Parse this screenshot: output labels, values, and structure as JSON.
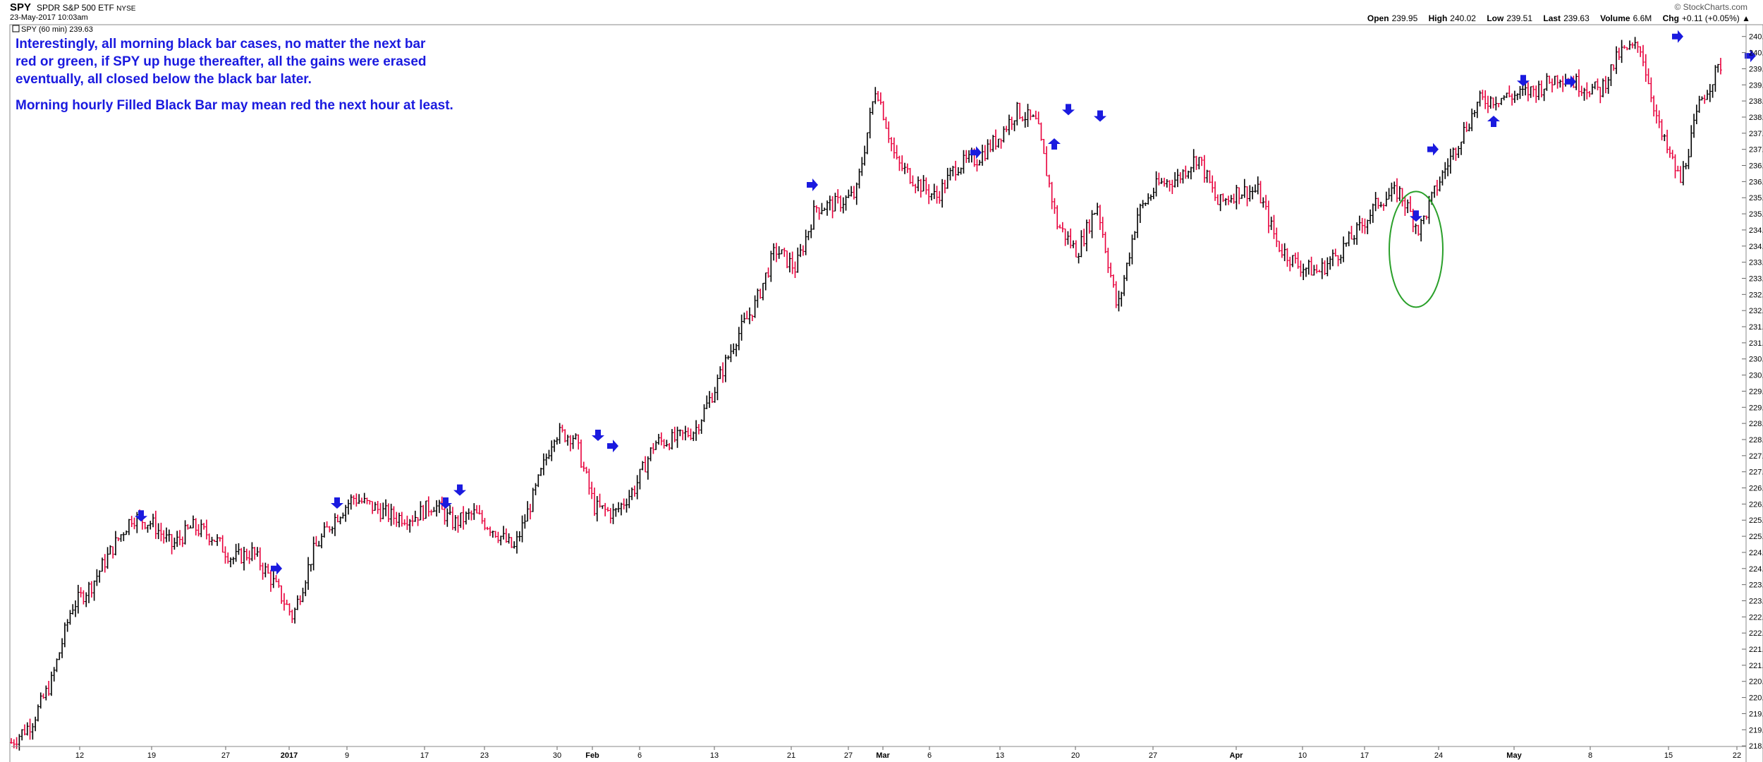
{
  "header": {
    "symbol": "SPY",
    "name": "SPDR S&P 500 ETF",
    "exchange": "NYSE",
    "date": "23-May-2017 10:03am",
    "brand": "© StockCharts.com",
    "open_label": "Open",
    "open": "239.95",
    "high_label": "High",
    "high": "240.02",
    "low_label": "Low",
    "low": "239.51",
    "last_label": "Last",
    "last": "239.63",
    "volume_label": "Volume",
    "volume": "6.6M",
    "chg_label": "Chg",
    "chg": "+0.11 (+0.05%)",
    "chg_arrow": "▲"
  },
  "legend": "SPY (60 min) 239.63",
  "annotations": {
    "note1": "Interestingly, all morning black bar cases, no matter the next bar red or green, if SPY up huge thereafter, all the gains were erased eventually, all closed below the black bar later.",
    "note2": "Morning hourly Filled Black Bar may mean red the next hour at least."
  },
  "colors": {
    "up": "#000000",
    "down": "#e8003c",
    "arrow": "#1a1adf",
    "circle": "#2aa02a",
    "grid": "#e4e4e4"
  },
  "chart_data": {
    "type": "bar",
    "ylim": [
      218.0,
      240.8
    ],
    "y_ticks": [
      "218.5",
      "219.0",
      "219.5",
      "220.0",
      "220.5",
      "221.0",
      "221.5",
      "222.0",
      "222.5",
      "223.0",
      "223.5",
      "224.0",
      "224.5",
      "225.0",
      "225.5",
      "226.0",
      "226.5",
      "227.0",
      "227.5",
      "228.0",
      "228.5",
      "229.0",
      "229.5",
      "230.0",
      "230.5",
      "231.0",
      "231.5",
      "232.0",
      "232.5",
      "233.0",
      "233.5",
      "234.0",
      "234.5",
      "235.0",
      "235.5",
      "236.0",
      "236.5",
      "237.0",
      "237.5",
      "238.0",
      "238.5",
      "239.0",
      "239.5",
      "240.0",
      "240.5"
    ],
    "x_ticks": [
      {
        "label": "12",
        "bold": false
      },
      {
        "label": "19",
        "bold": false
      },
      {
        "label": "27",
        "bold": false
      },
      {
        "label": "2017",
        "bold": true
      },
      {
        "label": "9",
        "bold": false
      },
      {
        "label": "17",
        "bold": false
      },
      {
        "label": "23",
        "bold": false
      },
      {
        "label": "30",
        "bold": false
      },
      {
        "label": "Feb",
        "bold": true
      },
      {
        "label": "6",
        "bold": false
      },
      {
        "label": "13",
        "bold": false
      },
      {
        "label": "21",
        "bold": false
      },
      {
        "label": "27",
        "bold": false
      },
      {
        "label": "Mar",
        "bold": true
      },
      {
        "label": "6",
        "bold": false
      },
      {
        "label": "13",
        "bold": false
      },
      {
        "label": "20",
        "bold": false
      },
      {
        "label": "27",
        "bold": false
      },
      {
        "label": "Apr",
        "bold": true
      },
      {
        "label": "10",
        "bold": false
      },
      {
        "label": "17",
        "bold": false
      },
      {
        "label": "24",
        "bold": false
      },
      {
        "label": "May",
        "bold": true
      },
      {
        "label": "8",
        "bold": false
      },
      {
        "label": "15",
        "bold": false
      },
      {
        "label": "22",
        "bold": false
      }
    ],
    "price_path": [
      218.6,
      219.2,
      220.5,
      222.8,
      223.5,
      224.6,
      225.6,
      225.4,
      224.7,
      225.3,
      225.0,
      224.3,
      224.5,
      223.6,
      222.5,
      224.5,
      225.5,
      226.2,
      225.9,
      225.6,
      225.6,
      226.0,
      225.4,
      225.7,
      225.2,
      224.6,
      226.3,
      228.2,
      228.1,
      225.9,
      225.7,
      226.5,
      227.9,
      228.0,
      228.3,
      229.6,
      231.1,
      232.2,
      233.9,
      233.3,
      235.2,
      235.3,
      235.6,
      239.0,
      236.6,
      236.0,
      235.5,
      236.5,
      236.7,
      237.3,
      238.2,
      237.8,
      234.7,
      233.8,
      235.3,
      232.0,
      235.0,
      235.9,
      236.1,
      236.8,
      235.3,
      235.7,
      235.7,
      234.0,
      233.4,
      233.2,
      233.8,
      234.5,
      235.4,
      235.7,
      234.5,
      236.0,
      237.3,
      238.5,
      238.6,
      238.7,
      238.9,
      239.3,
      239.0,
      238.8,
      240.0,
      240.2,
      237.5,
      236.0,
      238.5,
      239.63
    ],
    "bar_count": 640,
    "arrows": [
      {
        "dir": "down",
        "date": "Dec 15",
        "price": 225.5
      },
      {
        "dir": "right",
        "date": "Dec 30",
        "price": 224.0
      },
      {
        "dir": "down",
        "date": "Jan 6",
        "price": 225.9
      },
      {
        "dir": "down",
        "date": "Jan 18",
        "price": 225.9
      },
      {
        "dir": "down",
        "date": "Jan 20",
        "price": 226.3
      },
      {
        "dir": "down",
        "date": "Jan 31",
        "price": 228.0
      },
      {
        "dir": "right",
        "date": "Feb 2",
        "price": 227.8
      },
      {
        "dir": "right",
        "date": "Feb 23",
        "price": 235.9
      },
      {
        "dir": "right",
        "date": "Mar 13",
        "price": 236.9
      },
      {
        "dir": "up",
        "date": "Mar 17",
        "price": 237.3
      },
      {
        "dir": "down",
        "date": "Mar 17",
        "price": 238.1
      },
      {
        "dir": "down",
        "date": "Mar 21",
        "price": 237.9
      },
      {
        "dir": "down",
        "date": "Apr 20",
        "price": 234.8
      },
      {
        "dir": "right",
        "date": "Apr 24",
        "price": 237.0
      },
      {
        "dir": "up",
        "date": "Apr 28",
        "price": 238.0
      },
      {
        "dir": "down",
        "date": "May 1",
        "price": 239.0
      },
      {
        "dir": "right",
        "date": "May 5",
        "price": 239.1
      },
      {
        "dir": "right",
        "date": "May 15",
        "price": 240.5
      },
      {
        "dir": "right",
        "date": "May 22",
        "price": 239.9
      }
    ],
    "highlight_circle": {
      "date": "Apr 20",
      "price_center": 233.9
    }
  }
}
